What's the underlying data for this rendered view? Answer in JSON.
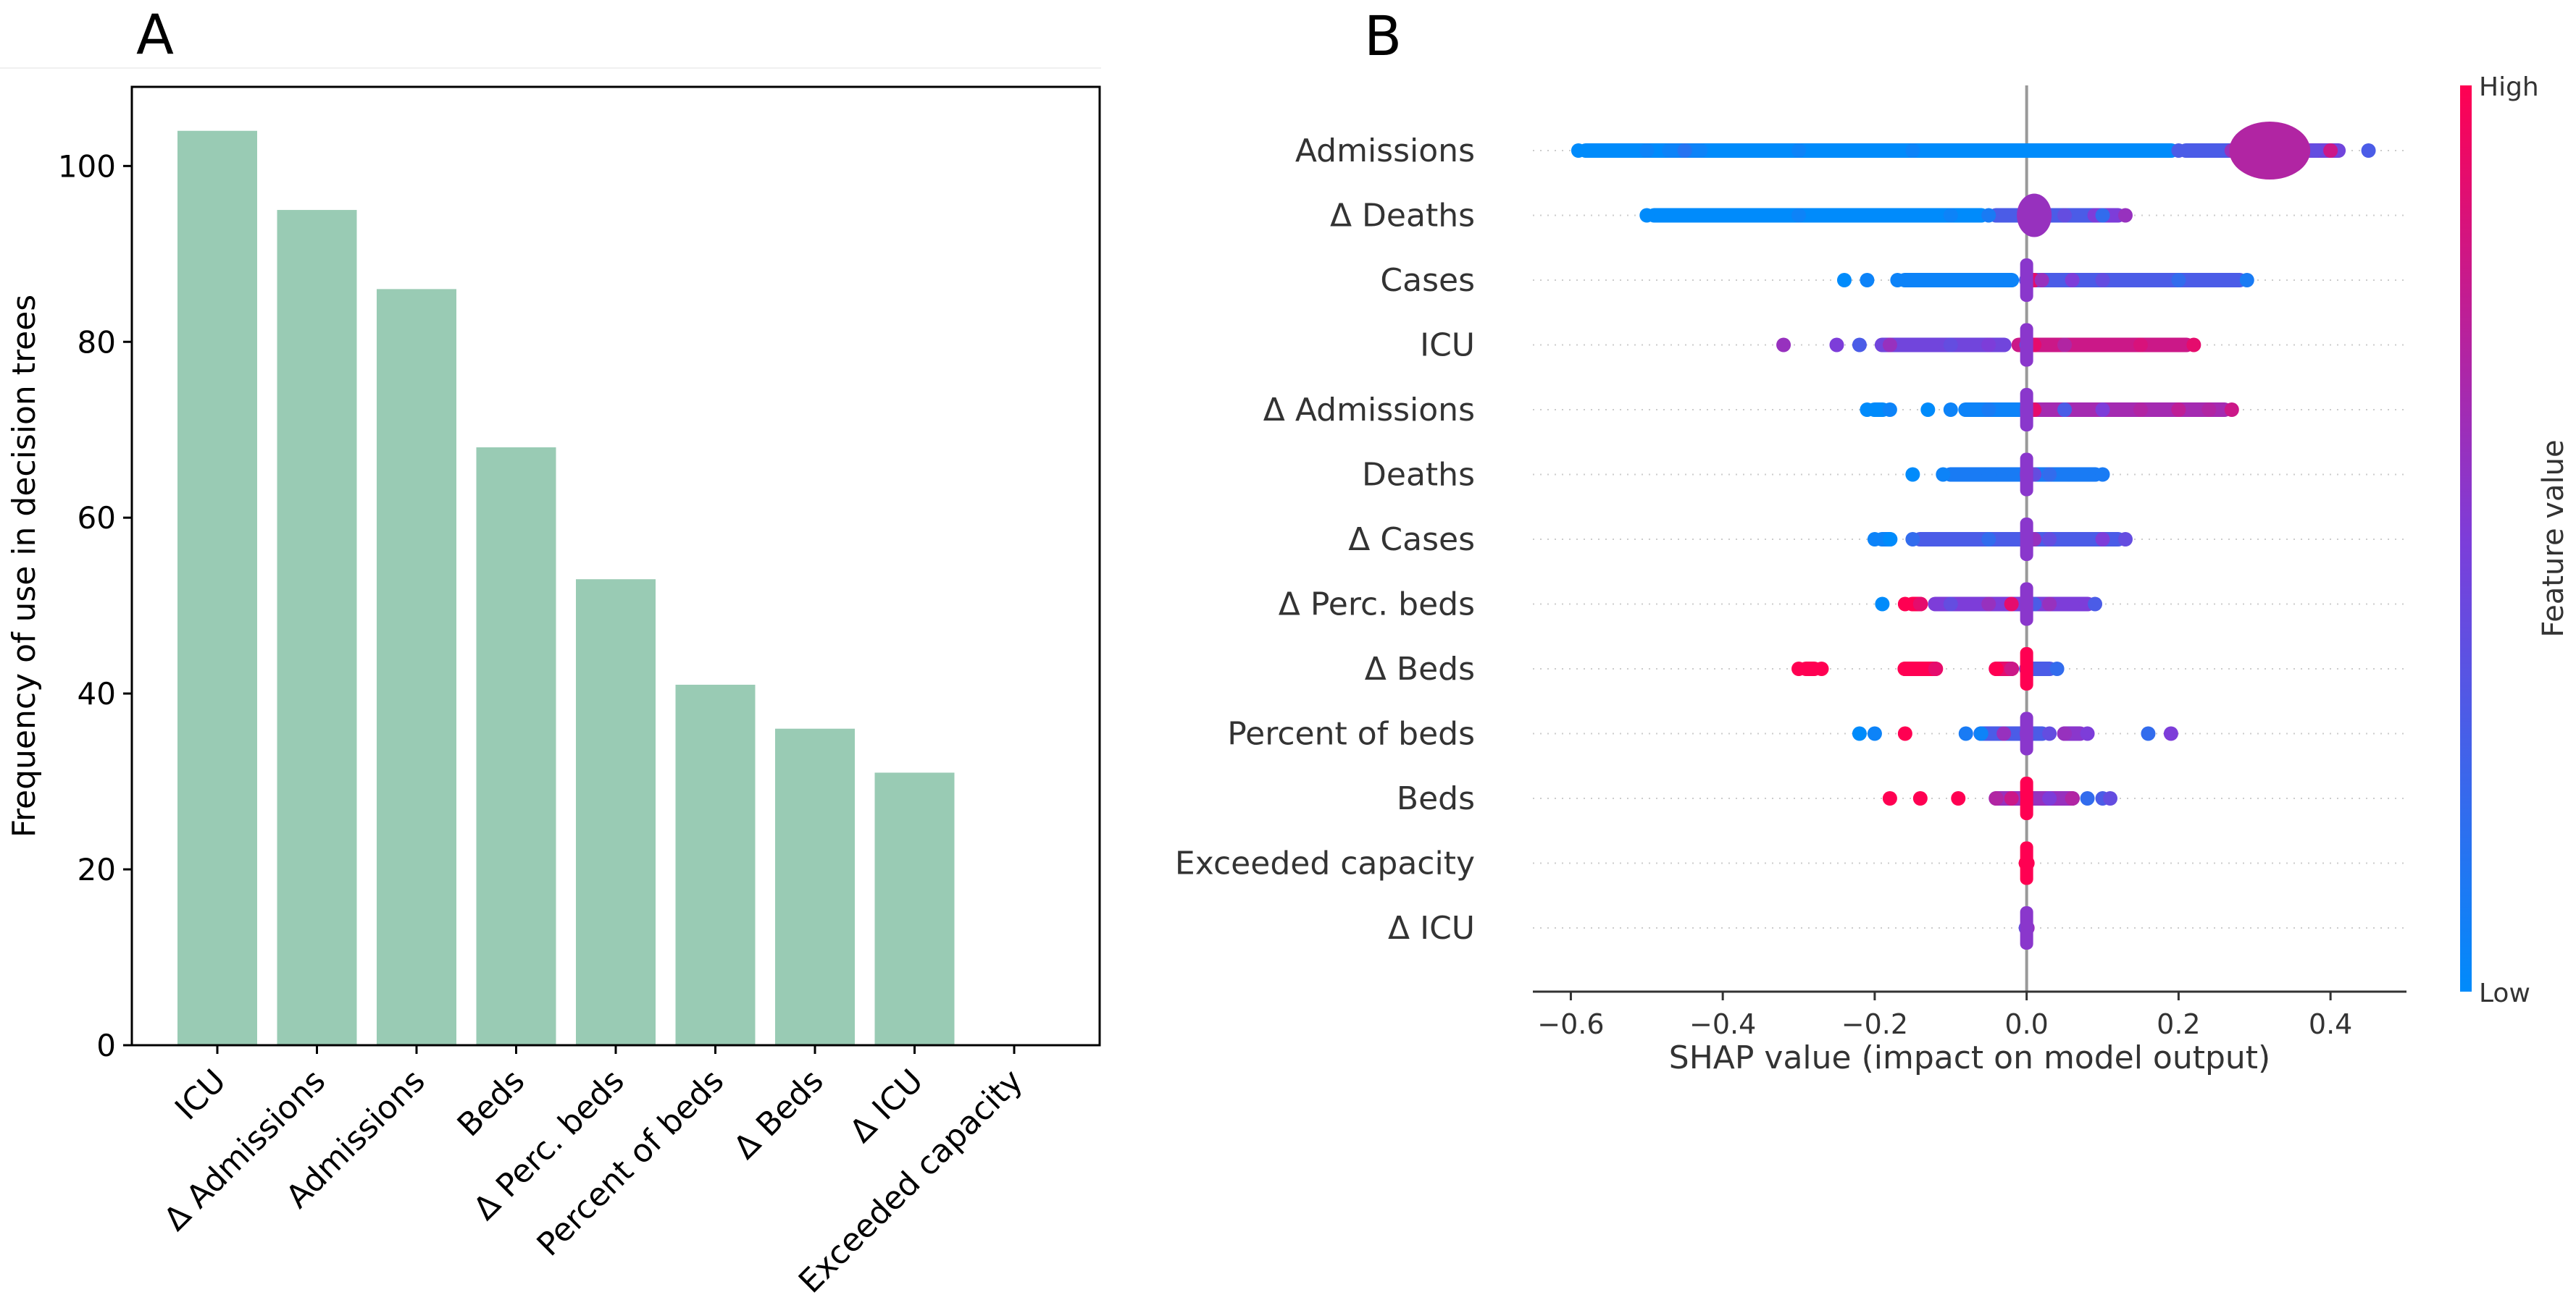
{
  "panel_a_letter": "A",
  "panel_b_letter": "B",
  "chart_data": [
    {
      "type": "bar",
      "title": "",
      "ylabel": "Frequency of use in decision trees",
      "xlabel": "",
      "categories": [
        "ICU",
        "Δ Admissions",
        "Admissions",
        "Beds",
        "Δ Perc. beds",
        "Percent of beds",
        "Δ Beds",
        "Δ ICU",
        "Exceeded capacity"
      ],
      "values": [
        104,
        95,
        86,
        68,
        53,
        41,
        36,
        31,
        0
      ],
      "ylim": [
        0,
        109
      ],
      "yticks": [
        0,
        20,
        40,
        60,
        80,
        100
      ],
      "bar_color": "#99cbb4",
      "grid": false
    },
    {
      "type": "scatter",
      "subtype": "shap-beeswarm",
      "title": "",
      "xlabel": "SHAP value (impact on model output)",
      "xlim": [
        -0.65,
        0.5
      ],
      "xticks": [
        -0.6,
        -0.4,
        -0.2,
        0.0,
        0.2,
        0.4
      ],
      "xtick_labels": [
        "−0.6",
        "−0.4",
        "−0.2",
        "0.0",
        "0.2",
        "0.4"
      ],
      "features": [
        {
          "name": "Admissions",
          "points": [
            [
              -0.59,
              0.0
            ],
            [
              -0.5,
              0.05
            ],
            [
              -0.45,
              0.15
            ],
            [
              -0.3,
              0.05
            ],
            [
              -0.15,
              0.05
            ],
            [
              0.2,
              0.3
            ],
            [
              0.27,
              0.6
            ],
            [
              0.3,
              1.0
            ],
            [
              0.32,
              0.8
            ],
            [
              0.35,
              0.5
            ],
            [
              0.38,
              0.4
            ],
            [
              0.4,
              0.8
            ],
            [
              0.45,
              0.3
            ]
          ],
          "segments": [
            [
              -0.59,
              0.2,
              0.0
            ],
            [
              -0.48,
              -0.42,
              0.05
            ],
            [
              0.2,
              0.3,
              0.3
            ],
            [
              0.29,
              0.36,
              0.75
            ],
            [
              0.36,
              0.42,
              0.45
            ]
          ]
        },
        {
          "name": "Δ Deaths",
          "points": [
            [
              -0.5,
              0.0
            ],
            [
              -0.3,
              0.05
            ],
            [
              -0.1,
              0.05
            ],
            [
              -0.05,
              0.1
            ],
            [
              0.0,
              0.3
            ],
            [
              0.01,
              0.9
            ],
            [
              0.02,
              0.7
            ],
            [
              0.05,
              0.4
            ],
            [
              0.1,
              0.2
            ],
            [
              0.13,
              0.6
            ]
          ],
          "segments": [
            [
              -0.5,
              -0.05,
              0.0
            ],
            [
              -0.05,
              0.1,
              0.3
            ],
            [
              0.08,
              0.13,
              0.5
            ]
          ]
        },
        {
          "name": "Cases",
          "points": [
            [
              -0.24,
              0.0
            ],
            [
              -0.21,
              0.05
            ],
            [
              -0.17,
              0.05
            ],
            [
              -0.1,
              0.05
            ],
            [
              -0.04,
              0.05
            ],
            [
              0.0,
              0.2
            ],
            [
              0.01,
              0.9
            ],
            [
              0.02,
              0.6
            ],
            [
              0.06,
              0.5
            ],
            [
              0.1,
              0.4
            ],
            [
              0.15,
              0.3
            ],
            [
              0.2,
              0.2
            ],
            [
              0.26,
              0.3
            ],
            [
              0.29,
              0.1
            ]
          ],
          "segments": [
            [
              -0.17,
              -0.01,
              0.05
            ],
            [
              -0.01,
              0.29,
              0.3
            ]
          ]
        },
        {
          "name": "ICU",
          "points": [
            [
              -0.32,
              0.6
            ],
            [
              -0.25,
              0.5
            ],
            [
              -0.22,
              0.3
            ],
            [
              -0.18,
              0.6
            ],
            [
              -0.1,
              0.4
            ],
            [
              -0.05,
              0.5
            ],
            [
              0.0,
              0.3
            ],
            [
              0.01,
              0.9
            ],
            [
              0.05,
              0.7
            ],
            [
              0.1,
              0.8
            ],
            [
              0.15,
              0.85
            ],
            [
              0.2,
              0.8
            ],
            [
              0.22,
              0.9
            ]
          ],
          "segments": [
            [
              -0.2,
              -0.02,
              0.45
            ],
            [
              -0.02,
              0.22,
              0.8
            ]
          ]
        },
        {
          "name": "Δ Admissions",
          "points": [
            [
              -0.21,
              0.0
            ],
            [
              -0.18,
              0.05
            ],
            [
              -0.13,
              0.0
            ],
            [
              -0.1,
              0.05
            ],
            [
              -0.05,
              0.1
            ],
            [
              0.0,
              0.2
            ],
            [
              0.01,
              0.9
            ],
            [
              0.05,
              0.3
            ],
            [
              0.1,
              0.5
            ],
            [
              0.15,
              0.7
            ],
            [
              0.2,
              0.75
            ],
            [
              0.24,
              0.7
            ],
            [
              0.27,
              0.8
            ]
          ],
          "segments": [
            [
              -0.21,
              -0.18,
              0.0
            ],
            [
              -0.09,
              0.0,
              0.05
            ],
            [
              0.0,
              0.27,
              0.65
            ]
          ]
        },
        {
          "name": "Deaths",
          "points": [
            [
              -0.15,
              0.0
            ],
            [
              -0.11,
              0.05
            ],
            [
              -0.05,
              0.1
            ],
            [
              0.0,
              0.3
            ],
            [
              0.01,
              0.4
            ],
            [
              0.03,
              0.2
            ],
            [
              0.06,
              0.1
            ],
            [
              0.1,
              0.1
            ]
          ],
          "segments": [
            [
              -0.11,
              0.1,
              0.1
            ]
          ]
        },
        {
          "name": "Δ Cases",
          "points": [
            [
              -0.2,
              0.05
            ],
            [
              -0.18,
              0.0
            ],
            [
              -0.15,
              0.2
            ],
            [
              -0.1,
              0.3
            ],
            [
              -0.05,
              0.2
            ],
            [
              0.0,
              0.3
            ],
            [
              0.01,
              0.6
            ],
            [
              0.03,
              0.4
            ],
            [
              0.06,
              0.3
            ],
            [
              0.1,
              0.5
            ],
            [
              0.13,
              0.4
            ]
          ],
          "segments": [
            [
              -0.2,
              -0.17,
              0.05
            ],
            [
              -0.15,
              0.13,
              0.3
            ]
          ]
        },
        {
          "name": "Δ Perc. beds",
          "points": [
            [
              -0.19,
              0.0
            ],
            [
              -0.16,
              1.0
            ],
            [
              -0.14,
              0.9
            ],
            [
              -0.1,
              0.4
            ],
            [
              -0.05,
              0.6
            ],
            [
              -0.02,
              0.9
            ],
            [
              0.0,
              0.5
            ],
            [
              0.01,
              0.3
            ],
            [
              0.03,
              0.6
            ],
            [
              0.06,
              0.5
            ],
            [
              0.09,
              0.3
            ]
          ],
          "segments": [
            [
              -0.16,
              -0.13,
              1.0
            ],
            [
              -0.13,
              0.09,
              0.5
            ]
          ]
        },
        {
          "name": "Δ Beds",
          "points": [
            [
              -0.3,
              1.0
            ],
            [
              -0.27,
              1.0
            ],
            [
              -0.16,
              1.0
            ],
            [
              -0.12,
              0.9
            ],
            [
              -0.04,
              1.0
            ],
            [
              -0.02,
              0.8
            ],
            [
              0.0,
              0.4
            ],
            [
              0.01,
              0.3
            ],
            [
              0.02,
              0.3
            ],
            [
              0.04,
              0.2
            ]
          ],
          "segments": [
            [
              -0.3,
              -0.27,
              1.0
            ],
            [
              -0.17,
              -0.11,
              1.0
            ],
            [
              -0.05,
              -0.01,
              0.9
            ],
            [
              -0.01,
              0.04,
              0.3
            ]
          ]
        },
        {
          "name": "Percent of beds",
          "points": [
            [
              -0.22,
              0.0
            ],
            [
              -0.2,
              0.05
            ],
            [
              -0.16,
              1.0
            ],
            [
              -0.08,
              0.1
            ],
            [
              -0.06,
              0.05
            ],
            [
              -0.03,
              0.6
            ],
            [
              0.0,
              0.5
            ],
            [
              0.01,
              0.3
            ],
            [
              0.03,
              0.4
            ],
            [
              0.05,
              0.6
            ],
            [
              0.08,
              0.5
            ],
            [
              0.16,
              0.2
            ],
            [
              0.19,
              0.5
            ]
          ],
          "segments": [
            [
              -0.07,
              0.03,
              0.3
            ],
            [
              0.04,
              0.08,
              0.55
            ]
          ]
        },
        {
          "name": "Beds",
          "points": [
            [
              -0.18,
              1.0
            ],
            [
              -0.14,
              1.0
            ],
            [
              -0.09,
              1.0
            ],
            [
              -0.04,
              0.7
            ],
            [
              -0.02,
              0.8
            ],
            [
              0.0,
              0.5
            ],
            [
              0.01,
              0.6
            ],
            [
              0.03,
              0.5
            ],
            [
              0.06,
              0.7
            ],
            [
              0.08,
              0.2
            ],
            [
              0.1,
              0.3
            ],
            [
              0.11,
              0.4
            ]
          ],
          "segments": [
            [
              -0.05,
              0.07,
              0.6
            ]
          ]
        },
        {
          "name": "Exceeded capacity",
          "points": [
            [
              0.0,
              1.0
            ],
            [
              0.001,
              1.0
            ],
            [
              -0.001,
              1.0
            ]
          ],
          "segments": []
        },
        {
          "name": "Δ ICU",
          "points": [
            [
              0.0,
              0.5
            ],
            [
              0.001,
              0.6
            ],
            [
              -0.001,
              0.4
            ]
          ],
          "segments": []
        }
      ],
      "colorbar": {
        "label": "Feature value",
        "high_label": "High",
        "low_label": "Low",
        "low_color": "#008bfb",
        "mid_color": "#7d3dd9",
        "high_color": "#ff0052"
      },
      "baseline_line_color": "#999999"
    }
  ]
}
